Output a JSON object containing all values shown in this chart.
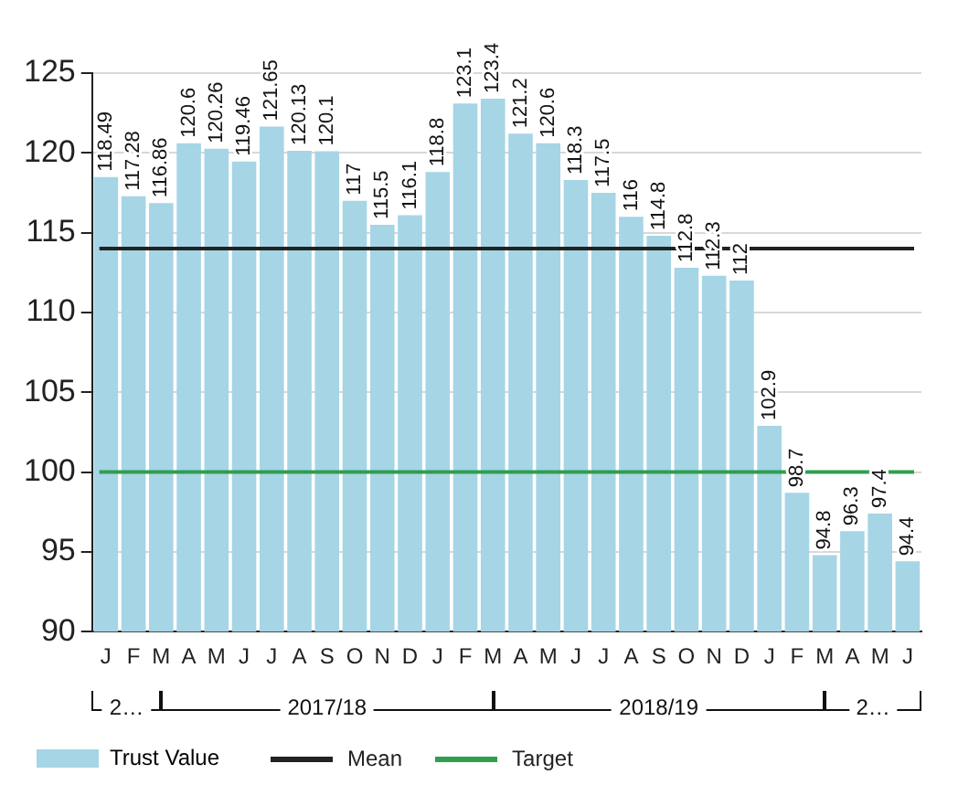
{
  "chart_data": {
    "type": "bar",
    "categories": [
      "J",
      "F",
      "M",
      "A",
      "M",
      "J",
      "J",
      "A",
      "S",
      "O",
      "N",
      "D",
      "J",
      "F",
      "M",
      "A",
      "M",
      "J",
      "J",
      "A",
      "S",
      "O",
      "N",
      "D",
      "J",
      "F",
      "M",
      "A",
      "M",
      "J"
    ],
    "series": [
      {
        "name": "Trust Value",
        "color": "#a6d5e6",
        "values": [
          118.49,
          117.28,
          116.86,
          120.6,
          120.26,
          119.46,
          121.65,
          120.13,
          120.1,
          117,
          115.5,
          116.1,
          118.8,
          123.1,
          123.4,
          121.2,
          120.6,
          118.3,
          117.5,
          116,
          114.8,
          112.8,
          112.3,
          112,
          102.9,
          98.7,
          94.8,
          96.3,
          97.4,
          94.4
        ]
      }
    ],
    "ref_lines": [
      {
        "axis": "y",
        "value": 114,
        "label": "Mean",
        "color": "#222222"
      },
      {
        "axis": "y",
        "value": 100,
        "label": "Target",
        "color": "#2e9e4f"
      }
    ],
    "annotations": [
      "2…",
      "2017/18",
      "2018/19",
      "2…"
    ],
    "ylim": [
      90,
      125
    ],
    "yticks": [
      90,
      95,
      100,
      105,
      110,
      115,
      120,
      125
    ],
    "grid": "y",
    "legend": "bottom left",
    "data_labels": true
  }
}
